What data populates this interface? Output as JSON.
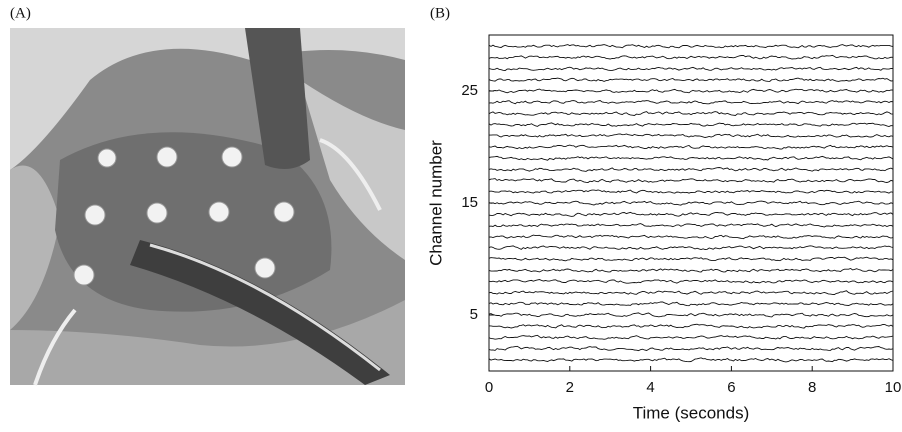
{
  "panel_labels": [
    "(A)",
    "(B)"
  ],
  "chart_data": {
    "type": "line",
    "xlabel": "Time (seconds)",
    "ylabel": "Channel number",
    "xlim": [
      0,
      10
    ],
    "xticks": [
      0,
      2,
      4,
      6,
      8,
      10
    ],
    "ylim": [
      0,
      30
    ],
    "yticks": [
      5,
      15,
      25
    ],
    "channels": [
      1,
      2,
      3,
      4,
      5,
      6,
      7,
      8,
      9,
      10,
      11,
      12,
      13,
      14,
      15,
      16,
      17,
      18,
      19,
      20,
      21,
      22,
      23,
      24,
      25,
      26,
      27,
      28,
      29
    ],
    "color": "#111111"
  }
}
